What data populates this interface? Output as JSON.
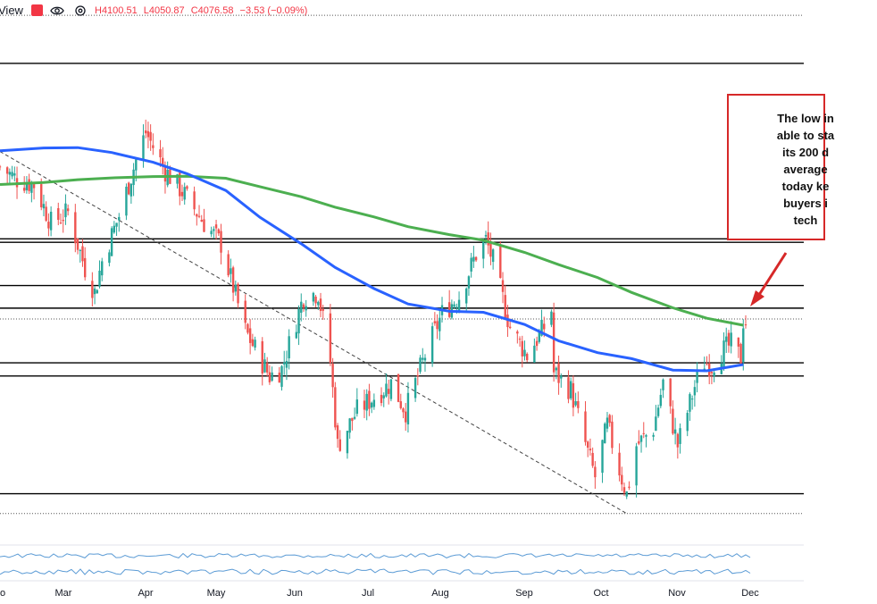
{
  "toolbar": {
    "title": "View",
    "flag_color": "#f23645",
    "ohlc": {
      "h": "H4100.51",
      "l": "L4050.87",
      "c": "C4076.58",
      "chg": "−3.53 (−0.09%)"
    },
    "icons": [
      "flag-icon",
      "eye-icon",
      "settings-icon"
    ]
  },
  "callout": {
    "lines": [
      "The low in",
      "able to sta",
      "its 200 d",
      "average",
      "today ke",
      "buyers i",
      "tech"
    ],
    "border_color": "#d62828"
  },
  "chart_data": {
    "type": "candlestick",
    "x_ticks": [
      "o",
      "Mar",
      "Apr",
      "May",
      "Jun",
      "Jul",
      "Aug",
      "Sep",
      "Oct",
      "Nov",
      "Dec"
    ],
    "ylim": [
      3450,
      5000
    ],
    "colors": {
      "up": "#26a69a",
      "down": "#ef5350",
      "ma200": "#4caf50",
      "ma100": "#2962ff",
      "indicator": "#5b9bd5"
    },
    "horizontal_levels": [
      4818,
      4314,
      4304,
      4180,
      4115,
      3958,
      3920,
      3582
    ],
    "dotted_levels": [
      4956,
      4084,
      3525
    ],
    "trendline": {
      "from": [
        "2022-01-28",
        4565
      ],
      "to": [
        "2022-10-13",
        3525
      ]
    },
    "ma200": [
      [
        "2022-01-28",
        4470
      ],
      [
        "2022-02-15",
        4476
      ],
      [
        "2022-03-01",
        4484
      ],
      [
        "2022-03-15",
        4489
      ],
      [
        "2022-04-01",
        4493
      ],
      [
        "2022-04-15",
        4494
      ],
      [
        "2022-05-01",
        4488
      ],
      [
        "2022-05-15",
        4464
      ],
      [
        "2022-06-01",
        4435
      ],
      [
        "2022-06-15",
        4405
      ],
      [
        "2022-07-01",
        4377
      ],
      [
        "2022-07-15",
        4349
      ],
      [
        "2022-08-01",
        4326
      ],
      [
        "2022-08-15",
        4310
      ],
      [
        "2022-09-01",
        4275
      ],
      [
        "2022-09-15",
        4240
      ],
      [
        "2022-10-01",
        4203
      ],
      [
        "2022-10-15",
        4160
      ],
      [
        "2022-11-01",
        4116
      ],
      [
        "2022-11-15",
        4086
      ],
      [
        "2022-11-30",
        4066
      ]
    ],
    "ma100": [
      [
        "2022-01-28",
        4567
      ],
      [
        "2022-02-15",
        4575
      ],
      [
        "2022-03-01",
        4576
      ],
      [
        "2022-03-15",
        4562
      ],
      [
        "2022-04-01",
        4534
      ],
      [
        "2022-04-15",
        4501
      ],
      [
        "2022-05-01",
        4453
      ],
      [
        "2022-05-15",
        4376
      ],
      [
        "2022-06-01",
        4300
      ],
      [
        "2022-06-15",
        4232
      ],
      [
        "2022-07-01",
        4171
      ],
      [
        "2022-07-15",
        4127
      ],
      [
        "2022-08-01",
        4106
      ],
      [
        "2022-08-15",
        4103
      ],
      [
        "2022-09-01",
        4068
      ],
      [
        "2022-09-15",
        4021
      ],
      [
        "2022-10-01",
        3987
      ],
      [
        "2022-10-15",
        3970
      ],
      [
        "2022-11-01",
        3937
      ],
      [
        "2022-11-15",
        3935
      ],
      [
        "2022-11-30",
        3953
      ]
    ],
    "closes": [
      [
        "2022-01-28",
        4520
      ],
      [
        "2022-02-04",
        4485
      ],
      [
        "2022-02-11",
        4470
      ],
      [
        "2022-02-18",
        4360
      ],
      [
        "2022-02-25",
        4390
      ],
      [
        "2022-03-04",
        4230
      ],
      [
        "2022-03-08",
        4160
      ],
      [
        "2022-03-11",
        4250
      ],
      [
        "2022-03-18",
        4380
      ],
      [
        "2022-03-25",
        4540
      ],
      [
        "2022-03-29",
        4620
      ],
      [
        "2022-04-06",
        4510
      ],
      [
        "2022-04-13",
        4450
      ],
      [
        "2022-04-22",
        4360
      ],
      [
        "2022-04-29",
        4300
      ],
      [
        "2022-05-09",
        4050
      ],
      [
        "2022-05-12",
        4010
      ],
      [
        "2022-05-19",
        3920
      ],
      [
        "2022-05-24",
        3940
      ],
      [
        "2022-06-02",
        4150
      ],
      [
        "2022-06-08",
        4160
      ],
      [
        "2022-06-13",
        3960
      ],
      [
        "2022-06-16",
        3720
      ],
      [
        "2022-06-24",
        3820
      ],
      [
        "2022-07-01",
        3860
      ],
      [
        "2022-07-08",
        3900
      ],
      [
        "2022-07-14",
        3820
      ],
      [
        "2022-07-22",
        3980
      ],
      [
        "2022-07-29",
        4100
      ],
      [
        "2022-08-05",
        4150
      ],
      [
        "2022-08-12",
        4270
      ],
      [
        "2022-08-16",
        4310
      ],
      [
        "2022-08-19",
        4250
      ],
      [
        "2022-08-26",
        4060
      ],
      [
        "2022-09-02",
        3980
      ],
      [
        "2022-09-09",
        4060
      ],
      [
        "2022-09-12",
        4110
      ],
      [
        "2022-09-13",
        3930
      ],
      [
        "2022-09-20",
        3880
      ],
      [
        "2022-09-27",
        3700
      ],
      [
        "2022-09-30",
        3630
      ],
      [
        "2022-10-05",
        3780
      ],
      [
        "2022-10-10",
        3650
      ],
      [
        "2022-10-13",
        3580
      ],
      [
        "2022-10-17",
        3720
      ],
      [
        "2022-10-24",
        3770
      ],
      [
        "2022-10-28",
        3900
      ],
      [
        "2022-11-03",
        3720
      ],
      [
        "2022-11-10",
        3890
      ],
      [
        "2022-11-14",
        3960
      ],
      [
        "2022-11-17",
        3950
      ],
      [
        "2022-11-21",
        3990
      ],
      [
        "2022-11-25",
        4010
      ],
      [
        "2022-11-29",
        3970
      ],
      [
        "2022-11-30",
        4080
      ],
      [
        "2022-12-01",
        4076
      ]
    ]
  }
}
